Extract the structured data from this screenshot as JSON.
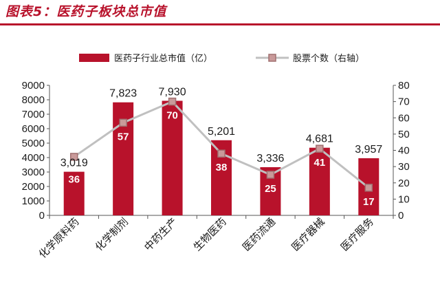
{
  "title": "图表5：医药子板块总市值",
  "colors": {
    "bar": "#b8122b",
    "line": "#c0c0c0",
    "marker_fill": "#c99a9a",
    "marker_edge": "#a07070",
    "title": "#b8122b"
  },
  "chart_data": {
    "type": "bar",
    "categories": [
      "化学原料药",
      "化学制剂",
      "中药生产",
      "生物医药",
      "医药流通",
      "医疗器械",
      "医疗服务"
    ],
    "series": [
      {
        "name": "医药子行业总市值（亿）",
        "type": "bar",
        "axis": "left",
        "values": [
          3019,
          7823,
          7930,
          5201,
          3336,
          4681,
          3957
        ],
        "labels": [
          "3,019",
          "7,823",
          "7,930",
          "5,201",
          "3,336",
          "4,681",
          "3,957"
        ]
      },
      {
        "name": "股票个数（右轴）",
        "type": "line",
        "axis": "right",
        "values": [
          36,
          57,
          70,
          38,
          25,
          41,
          17
        ],
        "labels": [
          "36",
          "57",
          "70",
          "38",
          "25",
          "41",
          "17"
        ]
      }
    ],
    "ylim": [
      0,
      9000
    ],
    "yticks": [
      0,
      1000,
      2000,
      3000,
      4000,
      5000,
      6000,
      7000,
      8000,
      9000
    ],
    "y2lim": [
      0,
      80
    ],
    "y2ticks": [
      0,
      10,
      20,
      30,
      40,
      50,
      60,
      70,
      80
    ],
    "grid": false,
    "legend": "top"
  }
}
